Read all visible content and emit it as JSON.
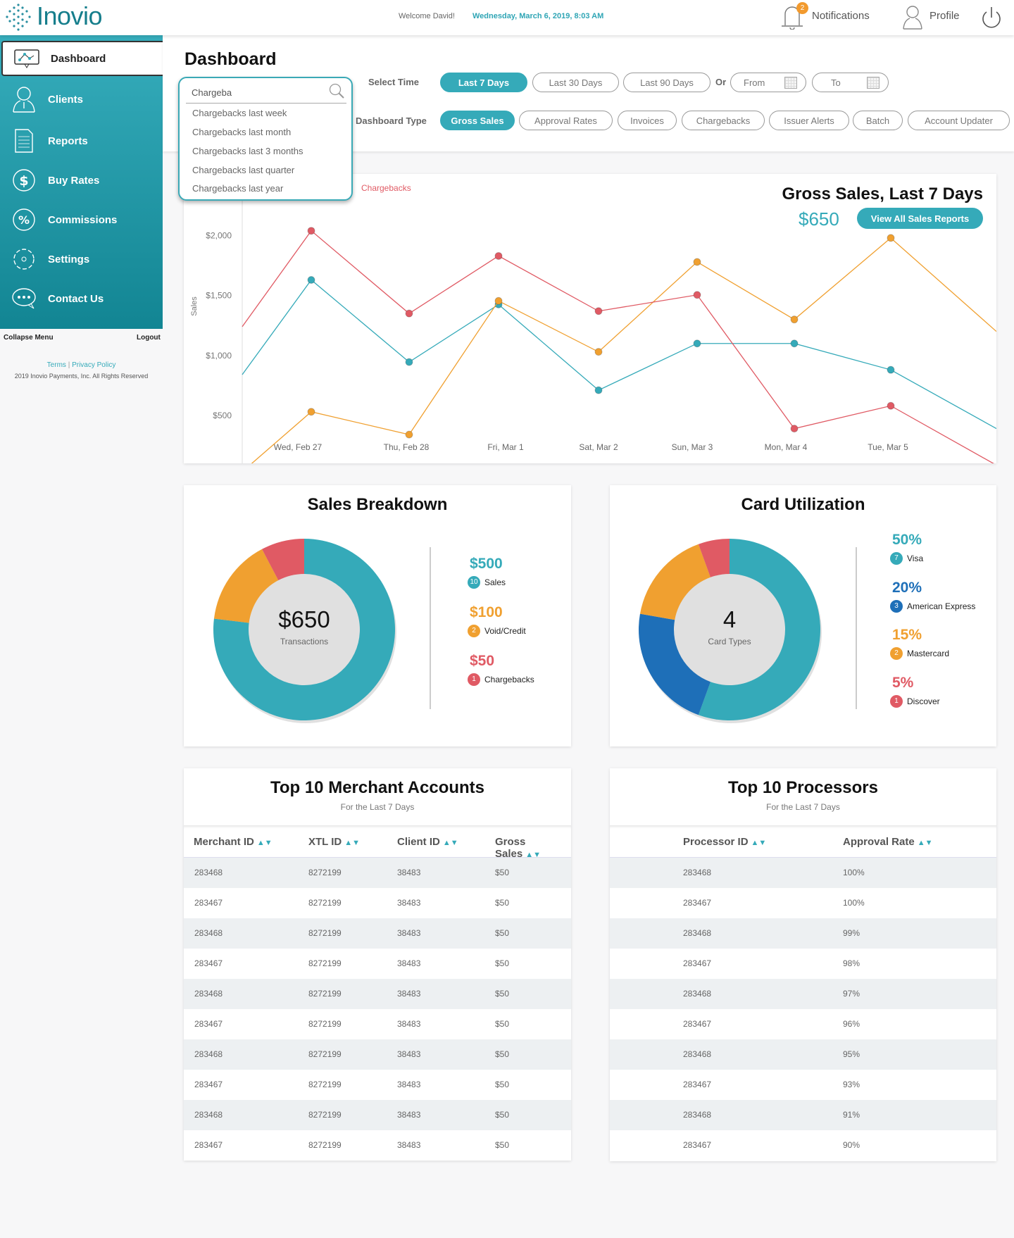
{
  "header": {
    "logo": "Inovio",
    "welcome": "Welcome David!",
    "datetime": "Wednesday, March 6, 2019, 8:03 AM",
    "notifications_label": "Notifications",
    "notifications_count": "2",
    "profile_label": "Profile"
  },
  "sidebar": {
    "items": [
      {
        "label": "Dashboard",
        "icon": "monitor-chart-icon"
      },
      {
        "label": "Clients",
        "icon": "user-icon"
      },
      {
        "label": "Reports",
        "icon": "document-icon"
      },
      {
        "label": "Buy Rates",
        "icon": "dollar-cycle-icon"
      },
      {
        "label": "Commissions",
        "icon": "percent-cycle-icon"
      },
      {
        "label": "Settings",
        "icon": "gear-icon"
      },
      {
        "label": "Contact Us",
        "icon": "chat-bubble-icon"
      }
    ],
    "collapse": "Collapse Menu",
    "logout": "Logout",
    "terms": "Terms",
    "privacy": "Privacy Policy",
    "copyright": "2019 Inovio Payments, Inc. All Rights Reserved"
  },
  "page": {
    "title": "Dashboard",
    "select_time_label": "Select Time",
    "time_options": [
      "Last 7 Days",
      "Last 30 Days",
      "Last 90 Days"
    ],
    "or": "Or",
    "from": "From",
    "to": "To",
    "dashboard_type_label": "Dashboard Type",
    "dashboard_types": [
      "Gross Sales",
      "Approval Rates",
      "Invoices",
      "Chargebacks",
      "Issuer Alerts",
      "Batch",
      "Account Updater"
    ]
  },
  "search": {
    "value": "Chargeba",
    "suggestions": [
      "Chargebacks last week",
      "Chargebacks last month",
      "Chargebacks last 3 months",
      "Chargebacks last quarter",
      "Chargebacks last year"
    ]
  },
  "gross_sales": {
    "title": "Gross Sales, Last 7 Days",
    "total": "$650",
    "button": "View All Sales Reports",
    "legend_visible": "Chargebacks"
  },
  "colors": {
    "teal": "#35aab9",
    "orange": "#f0a030",
    "red": "#e05a64",
    "blue": "#2a7dc4"
  },
  "chart_data": [
    {
      "type": "line",
      "title": "Gross Sales, Last 7 Days",
      "ylabel": "Sales",
      "xlabel": "",
      "ylim": [
        0,
        2000
      ],
      "yticks": [
        "0",
        "$500",
        "$1,000",
        "$1,500",
        "$2,000"
      ],
      "ytick_values": [
        0,
        500,
        1000,
        1500,
        2000
      ],
      "categories": [
        "Wed, Feb 27",
        "Thu, Feb 28",
        "Fri, Mar 1",
        "Sat, Mar 2",
        "Sun, Mar 3",
        "Mon, Mar 4",
        "Tue, Mar 5"
      ],
      "series": [
        {
          "name": "Sales",
          "color": "#35aab9",
          "start": 840,
          "values": [
            1630,
            945,
            1425,
            710,
            1100,
            1100,
            880
          ],
          "end": 390
        },
        {
          "name": "Void/Credit",
          "color": "#f0a030",
          "start": 30,
          "values": [
            530,
            340,
            1455,
            1030,
            1780,
            1300,
            1980
          ],
          "end": 1200
        },
        {
          "name": "Chargebacks",
          "color": "#e05a64",
          "start": 1240,
          "values": [
            2040,
            1350,
            1830,
            1370,
            1505,
            390,
            580
          ],
          "end": 85
        }
      ],
      "grid": false,
      "legend": "top-left"
    },
    {
      "type": "pie",
      "title": "Sales Breakdown",
      "center_value": "$650",
      "center_label": "Transactions",
      "slices": [
        {
          "label": "Sales",
          "amount": "$500",
          "value": 500,
          "count": "10",
          "color": "#35aab9"
        },
        {
          "label": "Void/Credit",
          "amount": "$100",
          "value": 100,
          "count": "2",
          "color": "#f0a030"
        },
        {
          "label": "Chargebacks",
          "amount": "$50",
          "value": 50,
          "count": "1",
          "color": "#e05a64"
        }
      ]
    },
    {
      "type": "pie",
      "title": "Card Utilization",
      "center_value": "4",
      "center_label": "Card Types",
      "slices": [
        {
          "label": "Visa",
          "amount": "50%",
          "value": 50,
          "count": "7",
          "color": "#35aab9"
        },
        {
          "label": "American Express",
          "amount": "20%",
          "value": 20,
          "count": "3",
          "color": "#1e6fb8"
        },
        {
          "label": "Mastercard",
          "amount": "15%",
          "value": 15,
          "count": "2",
          "color": "#f0a030"
        },
        {
          "label": "Discover",
          "amount": "5%",
          "value": 5,
          "count": "1",
          "color": "#e05a64"
        }
      ]
    }
  ],
  "merchants": {
    "title": "Top 10 Merchant Accounts",
    "subtitle": "For the Last 7 Days",
    "columns": [
      "Merchant ID",
      "XTL ID",
      "Client ID",
      "Gross Sales"
    ],
    "rows": [
      [
        "283468",
        "8272199",
        "38483",
        "$50"
      ],
      [
        "283467",
        "8272199",
        "38483",
        "$50"
      ],
      [
        "283468",
        "8272199",
        "38483",
        "$50"
      ],
      [
        "283467",
        "8272199",
        "38483",
        "$50"
      ],
      [
        "283468",
        "8272199",
        "38483",
        "$50"
      ],
      [
        "283467",
        "8272199",
        "38483",
        "$50"
      ],
      [
        "283468",
        "8272199",
        "38483",
        "$50"
      ],
      [
        "283467",
        "8272199",
        "38483",
        "$50"
      ],
      [
        "283468",
        "8272199",
        "38483",
        "$50"
      ],
      [
        "283467",
        "8272199",
        "38483",
        "$50"
      ]
    ]
  },
  "processors": {
    "title": "Top 10 Processors",
    "subtitle": "For the Last 7 Days",
    "columns": [
      "Processor ID",
      "Approval Rate"
    ],
    "rows": [
      [
        "283468",
        "100%"
      ],
      [
        "283467",
        "100%"
      ],
      [
        "283468",
        "99%"
      ],
      [
        "283467",
        "98%"
      ],
      [
        "283468",
        "97%"
      ],
      [
        "283467",
        "96%"
      ],
      [
        "283468",
        "95%"
      ],
      [
        "283467",
        "93%"
      ],
      [
        "283468",
        "91%"
      ],
      [
        "283467",
        "90%"
      ]
    ]
  }
}
